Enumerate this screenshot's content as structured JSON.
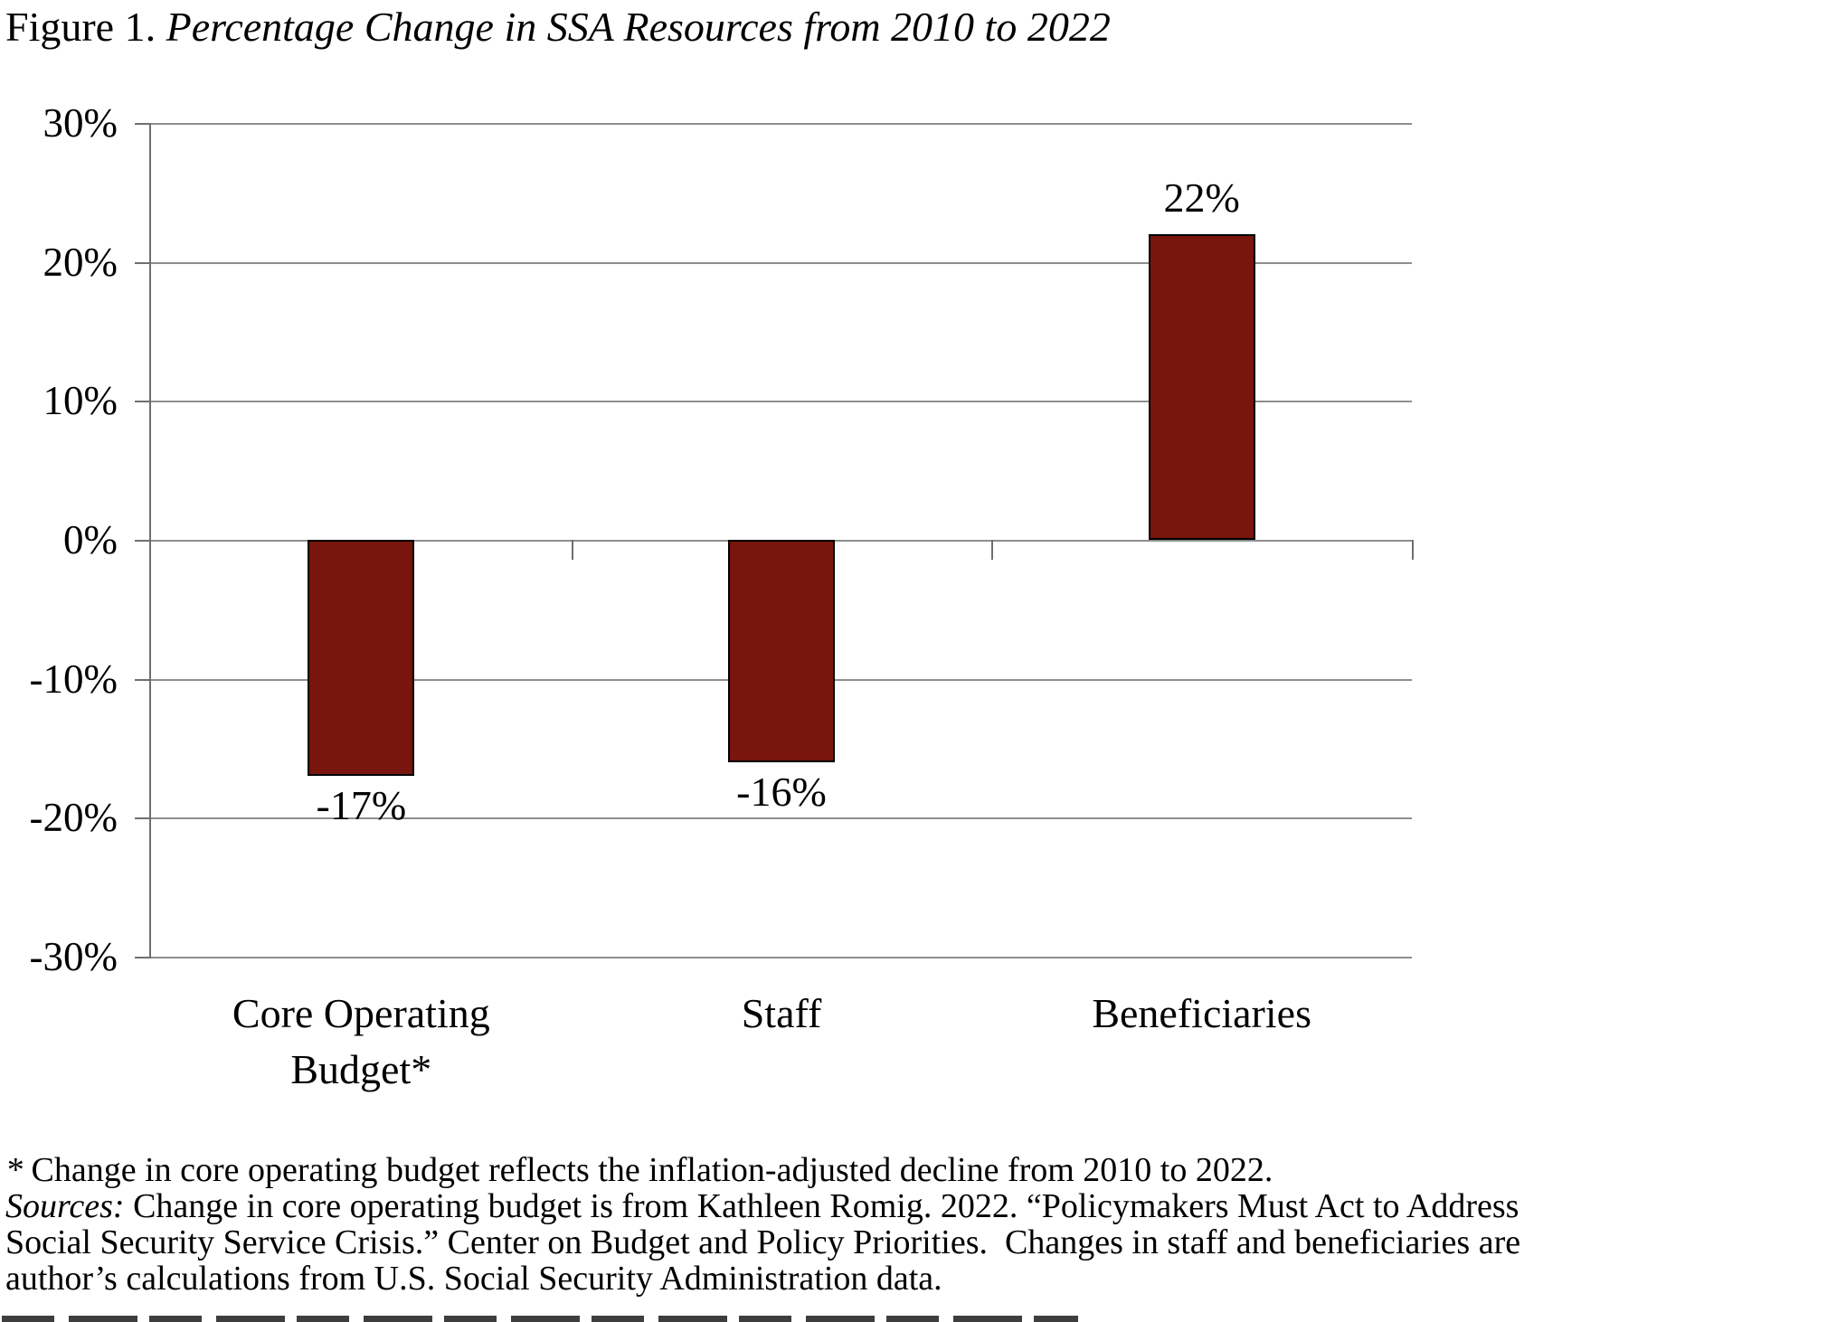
{
  "title": {
    "prefix": "Figure 1. ",
    "italic": "Percentage Change in SSA Resources from 2010 to 2022"
  },
  "chart_data": {
    "type": "bar",
    "title": "Figure 1. Percentage Change in SSA Resources from 2010 to 2022",
    "categories": [
      "Core Operating Budget*",
      "Staff",
      "Beneficiaries"
    ],
    "category_label_lines": [
      [
        "Core Operating",
        "Budget*"
      ],
      [
        "Staff"
      ],
      [
        "Beneficiaries"
      ]
    ],
    "values": [
      -17,
      -16,
      22
    ],
    "data_labels": [
      "-17%",
      "-16%",
      "22%"
    ],
    "xlabel": "",
    "ylabel": "",
    "ylim": [
      -30,
      30
    ],
    "ytick_interval": 10,
    "ytick_labels": [
      "30%",
      "20%",
      "10%",
      "0%",
      "-10%",
      "-20%",
      "-30%"
    ],
    "grid": true,
    "legend": "none",
    "bar_color": "#78150D",
    "bar_border_color": "#000000",
    "gridline_color": "#8e8e8e",
    "axis_color": "#6f6f6f",
    "background_color": "#ffffff"
  },
  "footnotes": {
    "star": "*",
    "note_rest": " Change in core operating budget reflects the inflation-adjusted decline from 2010 to 2022.",
    "sources_label": "Sources:",
    "sources_rest": " Change in core operating budget is from Kathleen Romig. 2022. “Policymakers Must Act to Address",
    "line3": "Social Security Service Crisis.” Center on Budget and Policy Priorities.  Changes in staff and beneficiaries are",
    "line4": "author’s calculations from U.S. Social Security Administration data.",
    "clipped_bottom_text": true
  }
}
